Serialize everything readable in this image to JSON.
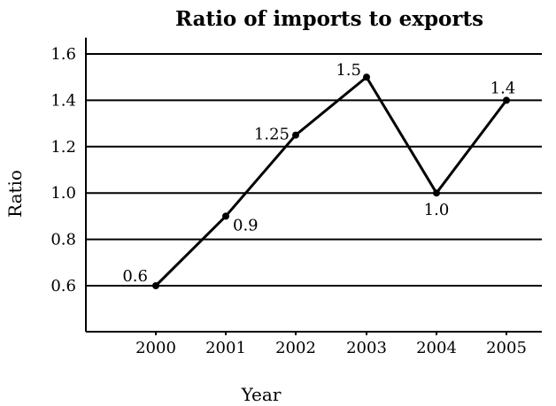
{
  "chart_data": {
    "type": "line",
    "title": "Ratio of imports to exports",
    "xlabel": "Year",
    "ylabel": "Ratio",
    "categories": [
      "2000",
      "2001",
      "2002",
      "2003",
      "2004",
      "2005"
    ],
    "series": [
      {
        "values": [
          0.6,
          0.9,
          1.25,
          1.5,
          1.0,
          1.4
        ]
      }
    ],
    "data_labels": [
      "0.6",
      "0.9",
      "1.25",
      "1.5",
      "1.0",
      "1.4"
    ],
    "yticks": [
      "0.6",
      "0.8",
      "1.0",
      "1.2",
      "1.4",
      "1.6"
    ],
    "ylim": [
      0.4,
      1.67
    ],
    "grid": true,
    "legend": "none"
  }
}
